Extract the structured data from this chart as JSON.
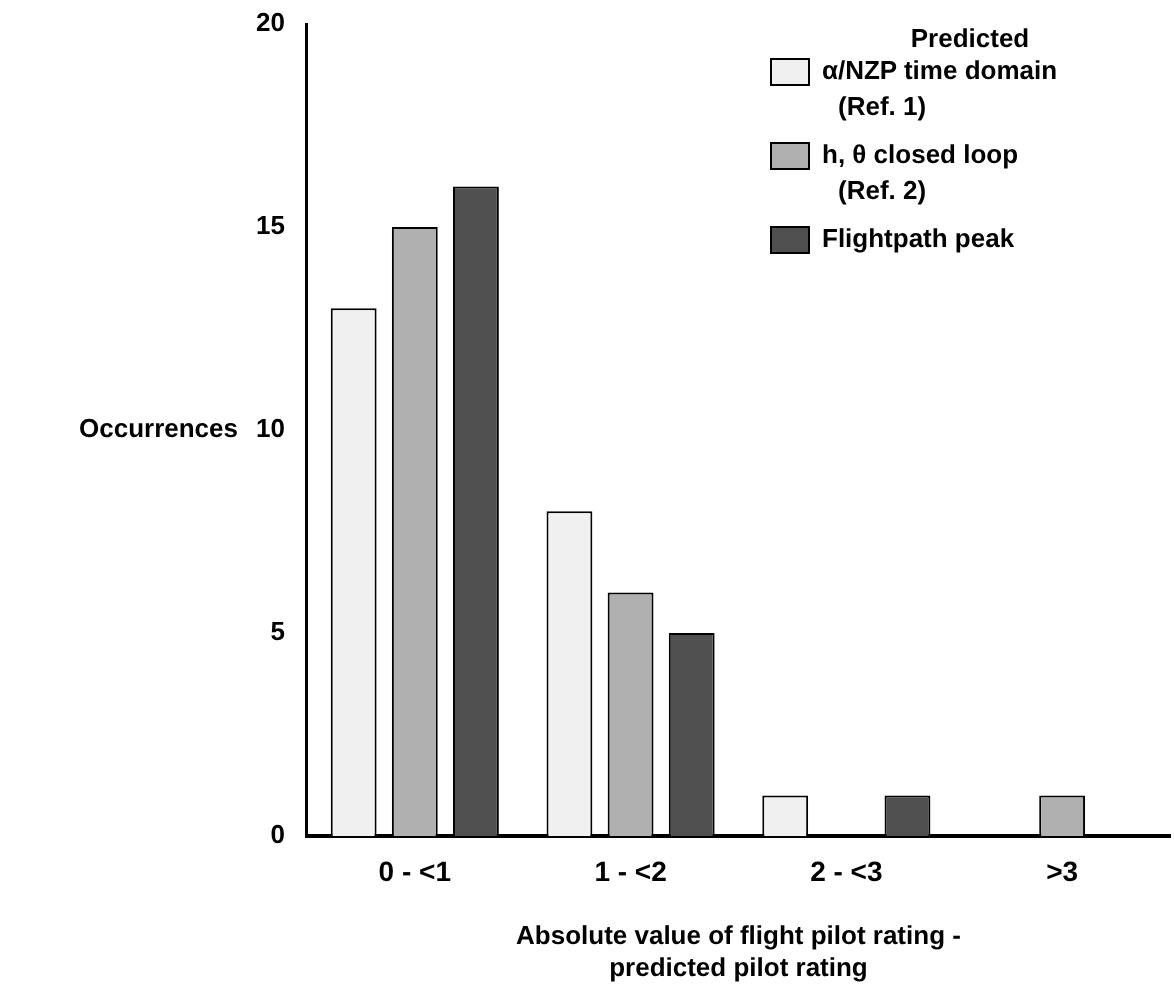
{
  "chart_data": {
    "type": "bar",
    "xlabel": "Absolute value of flight pilot rating - predicted pilot rating",
    "ylabel": "Occurrences",
    "legend_title": "Predicted",
    "categories": [
      "0 - <1",
      "1 - <2",
      "2 - <3",
      ">3"
    ],
    "series": [
      {
        "name": "α/NZP time domain (Ref. 1)",
        "color": "#f0f0f0",
        "values": [
          13,
          8,
          1,
          0
        ]
      },
      {
        "name": "h, θ closed loop (Ref. 2)",
        "color": "#b0b0b0",
        "values": [
          15,
          6,
          0,
          1
        ]
      },
      {
        "name": "Flightpath peak",
        "color": "#505050",
        "values": [
          16,
          5,
          1,
          0
        ]
      }
    ],
    "ylim": [
      0,
      20
    ],
    "yticks": [
      0,
      5,
      10,
      15,
      20
    ],
    "grid": false,
    "legend": "top right"
  }
}
